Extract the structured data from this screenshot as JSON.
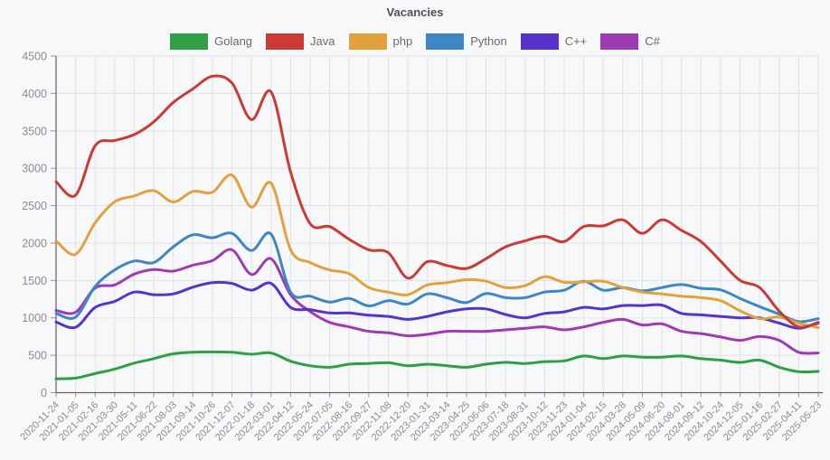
{
  "title": "Vacancies",
  "colors": {
    "background": "#f7f8fa",
    "grid": "#e0e2e6",
    "axis": "#5f6369",
    "tick": "#94979b",
    "tick_label": "#898c90",
    "title_text": "#4d5156",
    "legend_label": "#66696e"
  },
  "chart_data": {
    "type": "line",
    "title": "Vacancies",
    "xlabel": "",
    "ylabel": "",
    "ylim": [
      0,
      4500
    ],
    "ytick_step": 500,
    "grid": true,
    "legend_position": "top",
    "categories": [
      "2020-11-24",
      "2021-01-05",
      "2021-02-16",
      "2021-03-30",
      "2021-05-11",
      "2021-06-22",
      "2021-08-03",
      "2021-09-14",
      "2021-10-26",
      "2021-12-07",
      "2022-01-18",
      "2022-03-01",
      "2022-04-12",
      "2022-05-24",
      "2022-07-05",
      "2022-08-16",
      "2022-09-27",
      "2022-11-08",
      "2022-12-20",
      "2023-01-31",
      "2023-03-14",
      "2023-04-25",
      "2023-06-06",
      "2023-07-18",
      "2023-08-31",
      "2023-10-12",
      "2023-11-23",
      "2024-01-04",
      "2024-02-15",
      "2024-03-28",
      "2024-05-09",
      "2024-06-20",
      "2024-08-01",
      "2024-09-12",
      "2024-10-24",
      "2024-12-05",
      "2025-01-16",
      "2025-02-27",
      "2025-04-11",
      "2025-05-23"
    ],
    "series": [
      {
        "name": "Golang",
        "color": "#2f9e45",
        "values": [
          185,
          195,
          255,
          315,
          395,
          455,
          520,
          540,
          545,
          540,
          515,
          530,
          420,
          360,
          340,
          380,
          390,
          400,
          360,
          380,
          360,
          340,
          380,
          405,
          390,
          415,
          425,
          490,
          455,
          490,
          475,
          475,
          490,
          455,
          435,
          405,
          435,
          340,
          280,
          285
        ]
      },
      {
        "name": "Java",
        "color": "#cb3b35",
        "values": [
          2820,
          2640,
          3300,
          3370,
          3450,
          3620,
          3880,
          4060,
          4230,
          4140,
          3650,
          4020,
          2950,
          2260,
          2220,
          2050,
          1910,
          1870,
          1530,
          1750,
          1700,
          1660,
          1790,
          1950,
          2030,
          2090,
          2020,
          2220,
          2230,
          2310,
          2130,
          2310,
          2170,
          2020,
          1760,
          1500,
          1405,
          1090,
          880,
          940
        ]
      },
      {
        "name": "php",
        "color": "#e1a23c",
        "values": [
          2030,
          1850,
          2270,
          2550,
          2630,
          2700,
          2550,
          2690,
          2680,
          2910,
          2480,
          2800,
          1910,
          1740,
          1640,
          1590,
          1405,
          1345,
          1310,
          1440,
          1470,
          1510,
          1490,
          1405,
          1430,
          1550,
          1475,
          1480,
          1490,
          1405,
          1345,
          1320,
          1290,
          1270,
          1230,
          1095,
          990,
          1010,
          930,
          870
        ]
      },
      {
        "name": "Python",
        "color": "#3c87c4",
        "values": [
          1060,
          1010,
          1420,
          1640,
          1760,
          1740,
          1950,
          2110,
          2070,
          2130,
          1900,
          2120,
          1345,
          1290,
          1210,
          1260,
          1160,
          1230,
          1185,
          1320,
          1270,
          1205,
          1325,
          1270,
          1270,
          1345,
          1370,
          1490,
          1370,
          1405,
          1360,
          1405,
          1445,
          1395,
          1375,
          1260,
          1150,
          1050,
          950,
          990
        ]
      },
      {
        "name": "C++",
        "color": "#5634cb",
        "values": [
          945,
          875,
          1140,
          1220,
          1345,
          1310,
          1320,
          1410,
          1470,
          1460,
          1370,
          1460,
          1140,
          1110,
          1065,
          1065,
          1035,
          1020,
          980,
          1020,
          1080,
          1120,
          1120,
          1045,
          1000,
          1060,
          1080,
          1140,
          1120,
          1165,
          1165,
          1170,
          1060,
          1040,
          1020,
          1000,
          1000,
          930,
          860,
          930
        ]
      },
      {
        "name": "C#",
        "color": "#9e3bb3",
        "values": [
          1100,
          1075,
          1400,
          1440,
          1585,
          1645,
          1625,
          1705,
          1765,
          1910,
          1580,
          1790,
          1310,
          1085,
          940,
          880,
          820,
          800,
          760,
          780,
          820,
          820,
          820,
          840,
          860,
          880,
          840,
          880,
          940,
          980,
          905,
          920,
          820,
          790,
          745,
          700,
          750,
          700,
          540,
          530
        ]
      }
    ]
  }
}
